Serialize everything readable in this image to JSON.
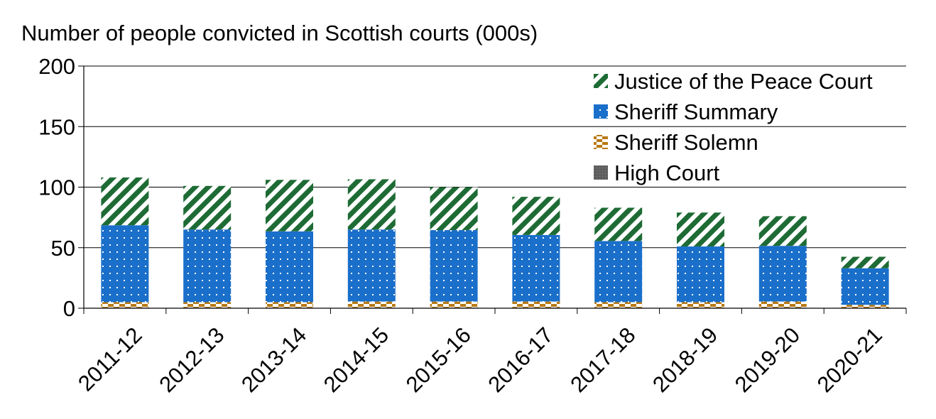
{
  "chart_data": {
    "type": "bar",
    "stacked": true,
    "title": "Number of people convicted in Scottish courts (000s)",
    "xlabel": "",
    "ylabel": "",
    "ylim": [
      0,
      200
    ],
    "yticks": [
      0,
      50,
      100,
      150,
      200
    ],
    "categories": [
      "2011-12",
      "2012-13",
      "2013-14",
      "2014-15",
      "2015-16",
      "2016-17",
      "2017-18",
      "2018-19",
      "2019-20",
      "2020-21"
    ],
    "series": [
      {
        "name": "High Court",
        "key": "high",
        "color": "#595959",
        "pattern": "grid",
        "values": [
          0.5,
          0.5,
          0.5,
          0.5,
          0.5,
          0.5,
          0.5,
          0.5,
          0.5,
          0.3
        ]
      },
      {
        "name": "Sheriff Solemn",
        "key": "solemn",
        "color": "#b87a14",
        "pattern": "checker",
        "values": [
          4.5,
          4.5,
          4.5,
          5.0,
          5.0,
          5.0,
          4.5,
          4.5,
          5.0,
          2.5
        ]
      },
      {
        "name": "Sheriff Summary",
        "key": "summary",
        "color": "#1a6fca",
        "pattern": "dots",
        "values": [
          63.5,
          60.0,
          58.5,
          59.5,
          59.0,
          55.0,
          50.5,
          46.0,
          46.0,
          30.2
        ]
      },
      {
        "name": "Justice of the Peace Court",
        "key": "jp",
        "color": "#1e6b35",
        "pattern": "diagonal",
        "values": [
          39.5,
          36.0,
          42.5,
          41.5,
          35.5,
          31.5,
          27.5,
          28.0,
          24.5,
          9.5
        ]
      }
    ],
    "legend_order": [
      "jp",
      "summary",
      "solemn",
      "high"
    ],
    "legend_position": "top-right",
    "grid": true
  }
}
